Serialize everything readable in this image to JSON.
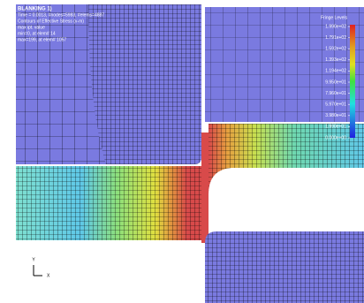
{
  "header": {
    "title": "BLANKING 1)",
    "info": "Time = 0.0013, #nodes=5983, #elems=4887",
    "contour": "Contours of Effective Stress (v-m)",
    "value_mode": "max ipt. value",
    "min": "min=0, at elem# 14",
    "max": "max=199, at elem# 1057"
  },
  "fringe": {
    "title": "Fringe Levels",
    "levels": [
      "1.990e+02",
      "1.791e+02",
      "1.592e+02",
      "1.393e+02",
      "1.194e+02",
      "9.950e+01",
      "7.960e+01",
      "5.970e+01",
      "3.980e+01",
      "1.990e+01",
      "0.000e+00"
    ]
  },
  "axes": {
    "y": "Y",
    "x": "X"
  }
}
